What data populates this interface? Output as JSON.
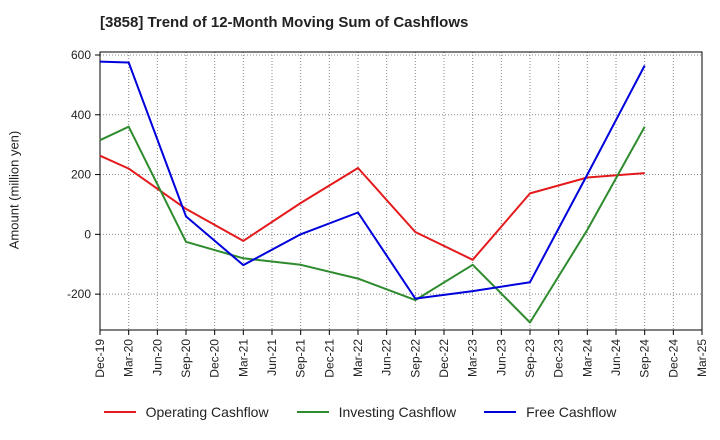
{
  "chart_data": {
    "type": "line",
    "title": "[3858]  Trend of 12-Month Moving Sum of Cashflows",
    "ylabel": "Amount (million yen)",
    "xlabel": "",
    "ylim": [
      -320,
      610
    ],
    "yticks": [
      600,
      400,
      200,
      0,
      -200
    ],
    "categories": [
      "Dec-19",
      "Mar-20",
      "Jun-20",
      "Sep-20",
      "Dec-20",
      "Mar-21",
      "Jun-21",
      "Sep-21",
      "Dec-21",
      "Mar-22",
      "Jun-22",
      "Sep-22",
      "Dec-22",
      "Mar-23",
      "Jun-23",
      "Sep-23",
      "Dec-23",
      "Mar-24",
      "Jun-24",
      "Sep-24",
      "Dec-24",
      "Mar-25"
    ],
    "grid": true,
    "legend_position": "bottom",
    "series": [
      {
        "name": "Operating Cashflow",
        "color": "#e41a1c",
        "values": [
          263,
          220,
          null,
          85,
          null,
          -22,
          null,
          105,
          null,
          222,
          null,
          8,
          null,
          -85,
          null,
          137,
          null,
          190,
          null,
          205,
          null,
          null
        ]
      },
      {
        "name": "Investing Cashflow",
        "color": "#2e8b2e",
        "values": [
          315,
          360,
          null,
          -25,
          null,
          -80,
          null,
          -102,
          null,
          -148,
          null,
          -220,
          null,
          -102,
          null,
          -295,
          null,
          15,
          null,
          360,
          null,
          null
        ]
      },
      {
        "name": "Free Cashflow",
        "color": "#0000dd",
        "values": [
          578,
          575,
          null,
          60,
          null,
          -103,
          null,
          0,
          null,
          73,
          null,
          -215,
          null,
          -190,
          null,
          -160,
          null,
          200,
          null,
          565,
          null,
          null
        ]
      }
    ]
  }
}
